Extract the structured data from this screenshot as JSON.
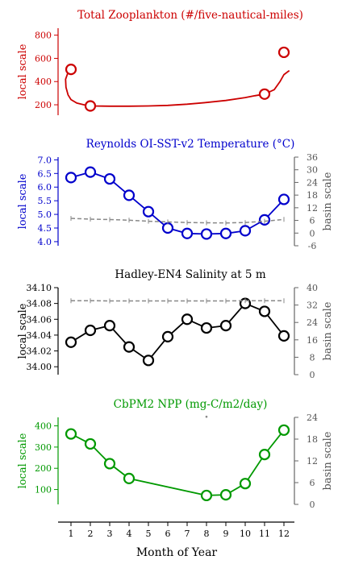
{
  "chart_data": {
    "xlabel": "Month of Year",
    "x_ticks": [
      1,
      2,
      3,
      4,
      5,
      6,
      7,
      8,
      9,
      10,
      11,
      12
    ],
    "panels": [
      {
        "id": "zooplankton",
        "type": "line",
        "title": "Total Zooplankton (#/five-nautical-miles)",
        "ylabel_left": "local scale",
        "ylabel_right": "",
        "color": "#cc0000",
        "ylim": [
          110,
          860
        ],
        "yticks": [
          200,
          400,
          600,
          800
        ],
        "y2lim": null,
        "y2ticks": [],
        "series": [
          {
            "style": "local",
            "x": [
              1,
              2,
              11,
              12
            ],
            "y": [
              505,
              190,
              292,
              652
            ]
          }
        ],
        "curve": {
          "x": [
            1,
            0.85,
            0.72,
            0.74,
            0.85,
            1,
            1.3,
            1.7,
            2,
            3,
            4,
            5,
            6,
            7,
            8,
            9,
            10,
            10.5,
            11,
            11.5,
            11.8,
            12,
            12.2,
            12.28
          ],
          "y": [
            505,
            480,
            420,
            350,
            285,
            245,
            215,
            198,
            190,
            188,
            188,
            190,
            195,
            205,
            220,
            237,
            262,
            278,
            292,
            330,
            400,
            460,
            485,
            495
          ]
        }
      },
      {
        "id": "sst",
        "type": "line",
        "title": "Reynolds OI-SST-v2 Temperature (°C)",
        "ylabel_left": "local scale",
        "ylabel_right": "basin scale",
        "color": "#0000cc",
        "ylim": [
          3.85,
          7.1
        ],
        "yticks": [
          4.0,
          4.5,
          5.0,
          5.5,
          6.0,
          6.5,
          7.0
        ],
        "y2lim": [
          -6,
          36
        ],
        "y2ticks": [
          -6,
          0,
          6,
          12,
          18,
          24,
          30,
          36
        ],
        "series": [
          {
            "style": "local",
            "x": [
              1,
              2,
              3,
              4,
              5,
              6,
              7,
              8,
              9,
              10,
              11,
              12
            ],
            "y": [
              6.35,
              6.55,
              6.3,
              5.7,
              5.1,
              4.5,
              4.3,
              4.28,
              4.3,
              4.4,
              4.8,
              5.55
            ]
          },
          {
            "style": "basin",
            "x": [
              1,
              2,
              3,
              4,
              5,
              6,
              7,
              8,
              9,
              10,
              11,
              12
            ],
            "y": [
              7.0,
              6.6,
              6.4,
              6.1,
              5.6,
              5.3,
              5.0,
              4.9,
              4.8,
              5.0,
              5.6,
              6.5
            ]
          }
        ]
      },
      {
        "id": "salinity",
        "type": "line",
        "title": "Hadley-EN4 Salinity at 5 m",
        "ylabel_left": "local scale",
        "ylabel_right": "basin scale",
        "color": "#000000",
        "ylim": [
          33.99,
          34.1
        ],
        "yticks": [
          34.0,
          34.02,
          34.04,
          34.06,
          34.08,
          34.1
        ],
        "y2lim": [
          0,
          40
        ],
        "y2ticks": [
          0,
          8,
          16,
          24,
          32,
          40
        ],
        "series": [
          {
            "style": "local",
            "x": [
              1,
              2,
              3,
              4,
              5,
              6,
              7,
              8,
              9,
              10,
              11,
              12
            ],
            "y": [
              34.031,
              34.046,
              34.052,
              34.025,
              34.008,
              34.038,
              34.06,
              34.049,
              34.052,
              34.08,
              34.07,
              34.039
            ]
          },
          {
            "style": "basin",
            "x": [
              1,
              2,
              3,
              4,
              5,
              6,
              7,
              8,
              9,
              10,
              11,
              12
            ],
            "y": [
              34.0,
              34.0,
              33.9,
              33.9,
              33.9,
              33.9,
              33.9,
              33.9,
              33.9,
              34.0,
              34.0,
              34.0
            ]
          }
        ]
      },
      {
        "id": "npp",
        "type": "line",
        "title": "CbPM2 NPP (mg-C/m2/day)",
        "ylabel_left": "local scale",
        "ylabel_right": "basin scale",
        "color": "#009900",
        "ylim": [
          30,
          440
        ],
        "yticks": [
          100,
          200,
          300,
          400
        ],
        "y2lim": [
          0,
          24
        ],
        "y2ticks": [
          0,
          6,
          12,
          18,
          24
        ],
        "series": [
          {
            "style": "local",
            "x": [
              1,
              2,
              3,
              4,
              8,
              9,
              10,
              11,
              12
            ],
            "y": [
              362,
              315,
              222,
              152,
              72,
              75,
              128,
              265,
              380
            ]
          },
          {
            "style": "basin-point",
            "x": [
              8
            ],
            "y": [
              443
            ]
          }
        ]
      }
    ]
  }
}
